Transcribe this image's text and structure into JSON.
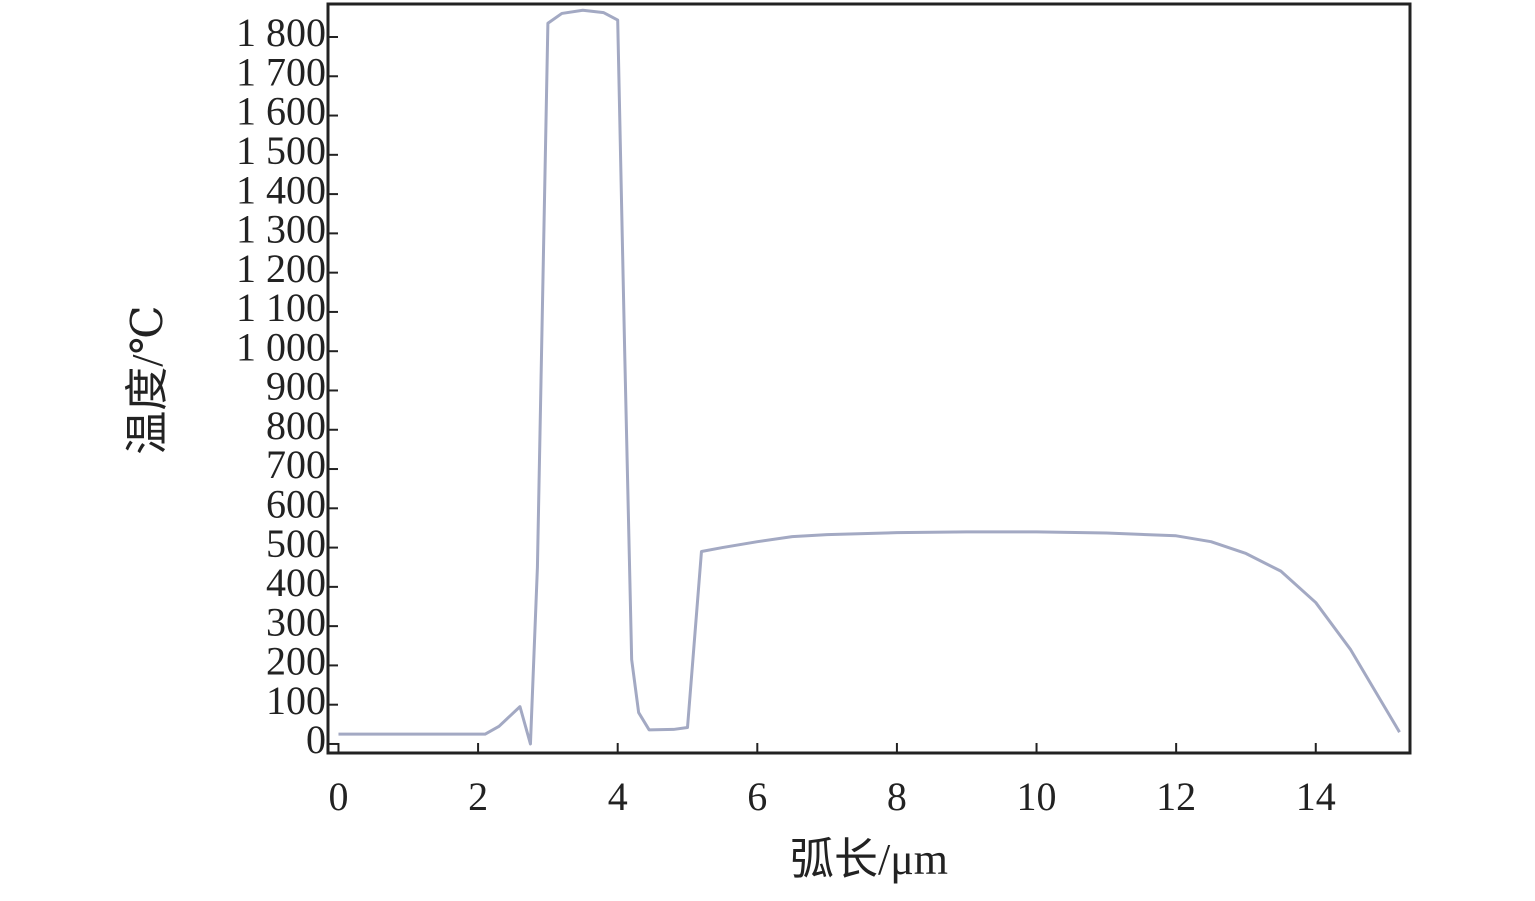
{
  "chart_data": {
    "type": "line",
    "xlabel": "弧长/μm",
    "ylabel": "温度/℃",
    "x": [
      0,
      2.1,
      2.3,
      2.6,
      2.75,
      2.85,
      3.0,
      3.2,
      3.5,
      3.8,
      4.0,
      4.1,
      4.2,
      4.3,
      4.45,
      4.8,
      5.0,
      5.2,
      5.5,
      6.0,
      6.5,
      7,
      8,
      9,
      10,
      11,
      12,
      12.5,
      13,
      13.5,
      14,
      14.5,
      15,
      15.2
    ],
    "series": [
      {
        "name": "温度",
        "color": "#a3a9c3",
        "values": [
          25,
          25,
          45,
          95,
          0,
          450,
          1835,
          1860,
          1868,
          1862,
          1843,
          1000,
          215,
          80,
          36,
          37,
          42,
          490,
          500,
          515,
          528,
          533,
          538,
          540,
          540,
          537,
          530,
          515,
          485,
          440,
          360,
          240,
          90,
          30
        ]
      }
    ],
    "xlim": [
      -0.15,
      15.35
    ],
    "ylim": [
      -23,
      1884
    ],
    "xticks": [
      0,
      2,
      4,
      6,
      8,
      10,
      12,
      14
    ],
    "yticks": [
      0,
      100,
      200,
      300,
      400,
      500,
      600,
      700,
      800,
      900,
      {
        "value": 1000,
        "label": "1 000"
      },
      {
        "value": 1100,
        "label": "1 100"
      },
      {
        "value": 1200,
        "label": "1 200"
      },
      {
        "value": 1300,
        "label": "1 300"
      },
      {
        "value": 1400,
        "label": "1 400"
      },
      {
        "value": 1500,
        "label": "1 500"
      },
      {
        "value": 1600,
        "label": "1 600"
      },
      {
        "value": 1700,
        "label": "1 700"
      },
      {
        "value": 1800,
        "label": "1 800"
      }
    ],
    "grid": false
  }
}
